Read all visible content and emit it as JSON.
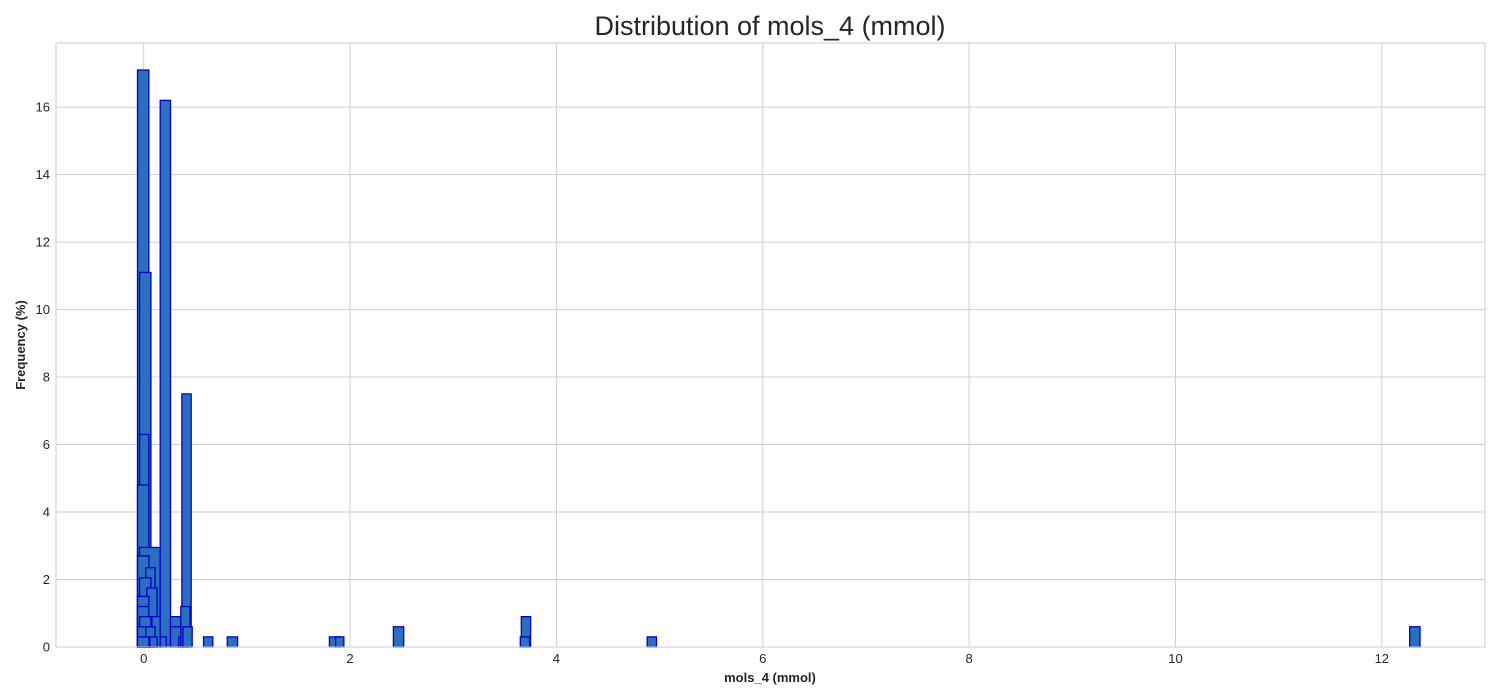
{
  "chart_data": {
    "type": "bar",
    "title": "Distribution of mols_4 (mmol)",
    "xlabel": "mols_4 (mmol)",
    "ylabel": "Frequency (%)",
    "xlim": [
      -0.85,
      13.0
    ],
    "ylim": [
      0,
      17.9
    ],
    "xticks": [
      0,
      2,
      4,
      6,
      8,
      10,
      12
    ],
    "yticks": [
      0,
      2,
      4,
      6,
      8,
      10,
      12,
      14,
      16
    ],
    "grid": true,
    "bar_fill": "#2b6fbf",
    "bar_edge": "#0000cc",
    "bars": [
      {
        "x0": -0.06,
        "x1": 0.05,
        "value": 17.1
      },
      {
        "x0": -0.04,
        "x1": 0.07,
        "value": 11.1
      },
      {
        "x0": -0.04,
        "x1": 0.05,
        "value": 6.3
      },
      {
        "x0": -0.06,
        "x1": 0.05,
        "value": 4.8
      },
      {
        "x0": -0.04,
        "x1": 0.16,
        "value": 2.95
      },
      {
        "x0": -0.06,
        "x1": 0.05,
        "value": 2.7
      },
      {
        "x0": 0.02,
        "x1": 0.11,
        "value": 2.35
      },
      {
        "x0": -0.04,
        "x1": 0.07,
        "value": 2.05
      },
      {
        "x0": 0.03,
        "x1": 0.13,
        "value": 1.75
      },
      {
        "x0": -0.06,
        "x1": 0.05,
        "value": 1.5
      },
      {
        "x0": -0.06,
        "x1": 0.05,
        "value": 1.2
      },
      {
        "x0": -0.04,
        "x1": 0.07,
        "value": 0.9
      },
      {
        "x0": 0.08,
        "x1": 0.17,
        "value": 0.9
      },
      {
        "x0": -0.06,
        "x1": 0.07,
        "value": 0.6
      },
      {
        "x0": 0.02,
        "x1": 0.11,
        "value": 0.6
      },
      {
        "x0": -0.06,
        "x1": 0.05,
        "value": 0.3
      },
      {
        "x0": 0.06,
        "x1": 0.13,
        "value": 0.3
      },
      {
        "x0": 0.16,
        "x1": 0.26,
        "value": 16.2
      },
      {
        "x0": 0.16,
        "x1": 0.22,
        "value": 0.3
      },
      {
        "x0": 0.26,
        "x1": 0.38,
        "value": 0.9
      },
      {
        "x0": 0.26,
        "x1": 0.37,
        "value": 0.6
      },
      {
        "x0": 0.34,
        "x1": 0.42,
        "value": 0.3
      },
      {
        "x0": 0.37,
        "x1": 0.46,
        "value": 7.5
      },
      {
        "x0": 0.36,
        "x1": 0.45,
        "value": 1.2
      },
      {
        "x0": 0.38,
        "x1": 0.47,
        "value": 0.6
      },
      {
        "x0": 0.58,
        "x1": 0.67,
        "value": 0.3
      },
      {
        "x0": 0.81,
        "x1": 0.91,
        "value": 0.3
      },
      {
        "x0": 1.8,
        "x1": 1.91,
        "value": 0.3
      },
      {
        "x0": 1.86,
        "x1": 1.94,
        "value": 0.3
      },
      {
        "x0": 2.42,
        "x1": 2.52,
        "value": 0.6
      },
      {
        "x0": 3.66,
        "x1": 3.75,
        "value": 0.9
      },
      {
        "x0": 3.65,
        "x1": 3.74,
        "value": 0.3
      },
      {
        "x0": 4.88,
        "x1": 4.97,
        "value": 0.3
      },
      {
        "x0": 12.27,
        "x1": 12.37,
        "value": 0.6
      }
    ]
  }
}
